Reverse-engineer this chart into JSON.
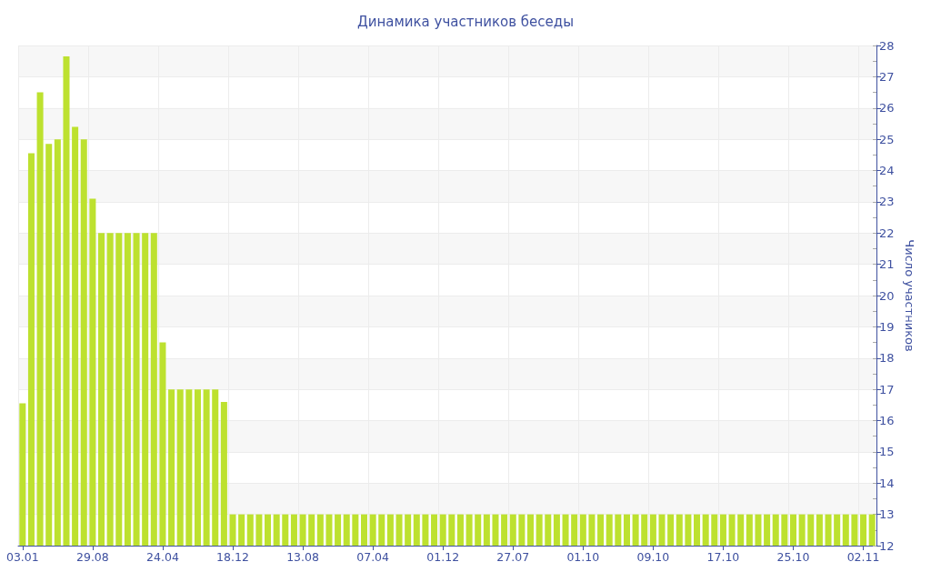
{
  "chart_data": {
    "type": "bar",
    "title": "Динамика участников беседы",
    "ylabel": "Число участников",
    "categories": [
      "03.01",
      null,
      null,
      null,
      null,
      null,
      null,
      null,
      "29.08",
      null,
      null,
      null,
      null,
      null,
      null,
      null,
      "24.04",
      null,
      null,
      null,
      null,
      null,
      null,
      null,
      "18.12",
      null,
      null,
      null,
      null,
      null,
      null,
      null,
      "13.08",
      null,
      null,
      null,
      null,
      null,
      null,
      null,
      "07.04",
      null,
      null,
      null,
      null,
      null,
      null,
      null,
      "01.12",
      null,
      null,
      null,
      null,
      null,
      null,
      null,
      "27.07",
      null,
      null,
      null,
      null,
      null,
      null,
      null,
      "01.10",
      null,
      null,
      null,
      null,
      null,
      null,
      null,
      "09.10",
      null,
      null,
      null,
      null,
      null,
      null,
      null,
      "17.10",
      null,
      null,
      null,
      null,
      null,
      null,
      null,
      "25.10",
      null,
      null,
      null,
      null,
      null,
      null,
      null,
      "02.11",
      null
    ],
    "values": [
      16.55,
      24.55,
      26.5,
      24.85,
      25.0,
      27.65,
      25.4,
      25.0,
      23.1,
      22,
      22,
      22,
      22,
      22,
      22,
      22,
      18.5,
      17,
      17,
      17,
      17,
      17,
      17,
      16.6,
      13,
      13,
      13,
      13,
      13,
      13,
      13,
      13,
      13,
      13,
      13,
      13,
      13,
      13,
      13,
      13,
      13,
      13,
      13,
      13,
      13,
      13,
      13,
      13,
      13,
      13,
      13,
      13,
      13,
      13,
      13,
      13,
      13,
      13,
      13,
      13,
      13,
      13,
      13,
      13,
      13,
      13,
      13,
      13,
      13,
      13,
      13,
      13,
      13,
      13,
      13,
      13,
      13,
      13,
      13,
      13,
      13,
      13,
      13,
      13,
      13,
      13,
      13,
      13,
      13,
      13,
      13,
      13,
      13,
      13,
      13,
      13,
      13,
      13
    ],
    "color": "#bde12f",
    "ylim": [
      12,
      28
    ],
    "yticks": [
      12,
      {
        "value": 12.5,
        "label": null
      },
      13,
      {
        "value": 13.5,
        "label": null
      },
      14,
      {
        "value": 14.5,
        "label": null
      },
      15,
      {
        "value": 15.5,
        "label": null
      },
      16,
      {
        "value": 16.5,
        "label": null
      },
      17,
      {
        "value": 17.5,
        "label": null
      },
      18,
      {
        "value": 18.5,
        "label": null
      },
      19,
      {
        "value": 19.5,
        "label": null
      },
      20,
      {
        "value": 20.5,
        "label": null
      },
      21,
      {
        "value": 21.5,
        "label": null
      },
      22,
      {
        "value": 22.5,
        "label": null
      },
      23,
      {
        "value": 23.5,
        "label": null
      },
      24,
      {
        "value": 24.5,
        "label": null
      },
      25,
      {
        "value": 25.5,
        "label": null
      },
      26,
      {
        "value": 26.5,
        "label": null
      },
      27,
      {
        "value": 27.5,
        "label": null
      },
      28
    ],
    "grid": true
  }
}
